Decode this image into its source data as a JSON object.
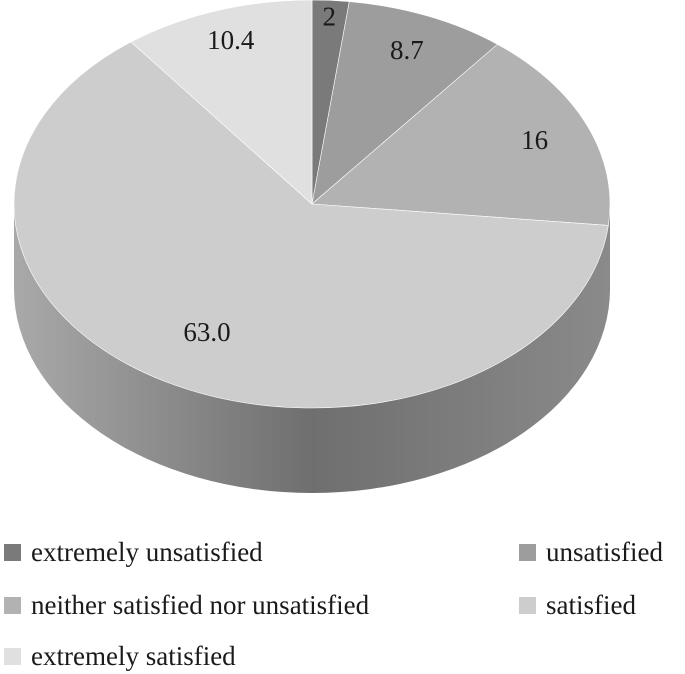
{
  "chart_data": {
    "type": "pie",
    "title": "",
    "three_d": true,
    "categories": [
      "extremely unsatisfied",
      "unsatisfied",
      "neither satisfied nor unsatisfied",
      "satisfied",
      "extremely satisfied"
    ],
    "values": [
      2,
      8.7,
      16,
      63.0,
      10.4
    ],
    "data_labels": [
      "2",
      "8.7",
      "16",
      "63.0",
      "10.4"
    ],
    "colors": [
      "#7a7a7a",
      "#9d9d9d",
      "#b2b2b2",
      "#cdcdcd",
      "#e0e0e0"
    ],
    "legend_position": "bottom"
  }
}
